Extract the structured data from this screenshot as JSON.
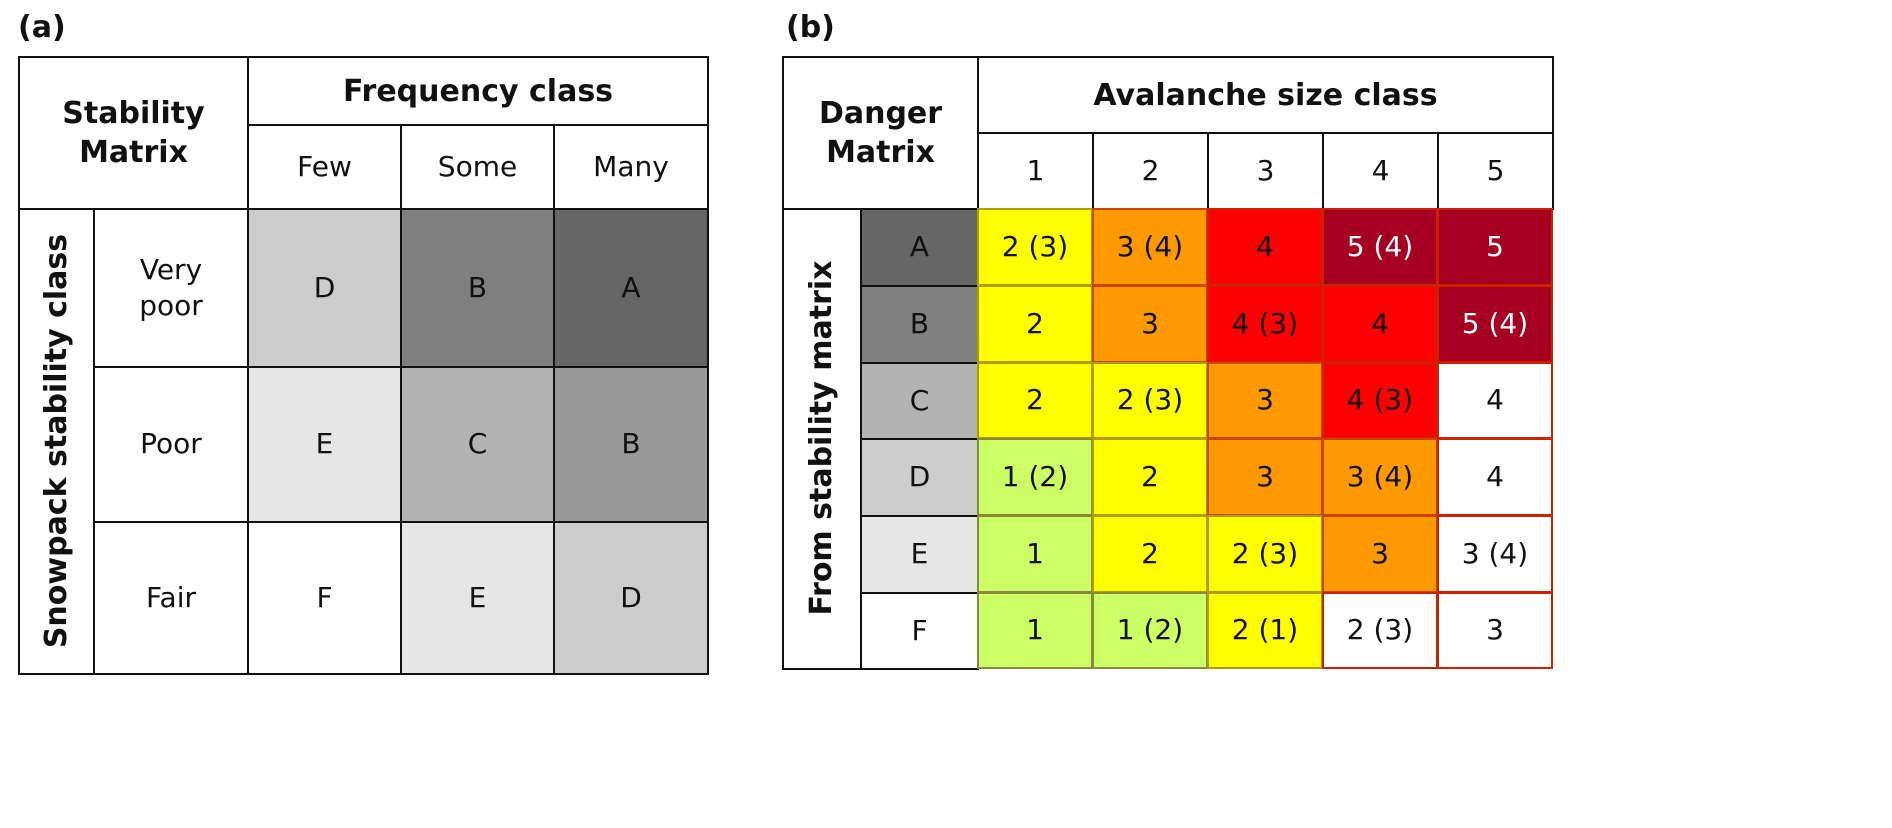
{
  "panel_a": {
    "label": "(a)",
    "corner": "Stability Matrix",
    "col_group": "Frequency class",
    "columns": [
      "Few",
      "Some",
      "Many"
    ],
    "row_group": "Snowpack stability class",
    "rows": [
      {
        "label": "Very poor",
        "cells": [
          {
            "v": "D",
            "c": "#cccccc"
          },
          {
            "v": "B",
            "c": "#808080"
          },
          {
            "v": "A",
            "c": "#666666"
          }
        ]
      },
      {
        "label": "Poor",
        "cells": [
          {
            "v": "E",
            "c": "#e6e6e6"
          },
          {
            "v": "C",
            "c": "#b3b3b3"
          },
          {
            "v": "B",
            "c": "#999999"
          }
        ]
      },
      {
        "label": "Fair",
        "cells": [
          {
            "v": "F",
            "c": "#ffffff"
          },
          {
            "v": "E",
            "c": "#e6e6e6"
          },
          {
            "v": "D",
            "c": "#cccccc"
          }
        ]
      }
    ]
  },
  "panel_b": {
    "label": "(b)",
    "corner": "Danger Matrix",
    "col_group": "Avalanche size class",
    "columns": [
      "1",
      "2",
      "3",
      "4",
      "5"
    ],
    "row_group": "From stability matrix",
    "rows": [
      {
        "label": "A",
        "c": "#666666",
        "cells": [
          {
            "v": "2 (3)",
            "t": "Y"
          },
          {
            "v": "3 (4)",
            "t": "O"
          },
          {
            "v": "4",
            "t": "R"
          },
          {
            "v": "5 (4)",
            "t": "D"
          },
          {
            "v": "5",
            "t": "D"
          }
        ]
      },
      {
        "label": "B",
        "c": "#808080",
        "cells": [
          {
            "v": "2",
            "t": "Y"
          },
          {
            "v": "3",
            "t": "O"
          },
          {
            "v": "4 (3)",
            "t": "R"
          },
          {
            "v": "4",
            "t": "R"
          },
          {
            "v": "5 (4)",
            "t": "D"
          }
        ]
      },
      {
        "label": "C",
        "c": "#b3b3b3",
        "cells": [
          {
            "v": "2",
            "t": "Y"
          },
          {
            "v": "2 (3)",
            "t": "Y"
          },
          {
            "v": "3",
            "t": "O"
          },
          {
            "v": "4 (3)",
            "t": "R"
          },
          {
            "v": "4",
            "t": "W"
          }
        ]
      },
      {
        "label": "D",
        "c": "#cccccc",
        "cells": [
          {
            "v": "1 (2)",
            "t": "G"
          },
          {
            "v": "2",
            "t": "Y"
          },
          {
            "v": "3",
            "t": "O"
          },
          {
            "v": "3 (4)",
            "t": "O"
          },
          {
            "v": "4",
            "t": "W"
          }
        ]
      },
      {
        "label": "E",
        "c": "#e6e6e6",
        "cells": [
          {
            "v": "1",
            "t": "G"
          },
          {
            "v": "2",
            "t": "Y"
          },
          {
            "v": "2 (3)",
            "t": "Y"
          },
          {
            "v": "3",
            "t": "O"
          },
          {
            "v": "3 (4)",
            "t": "W"
          }
        ]
      },
      {
        "label": "F",
        "c": "#ffffff",
        "cells": [
          {
            "v": "1",
            "t": "G"
          },
          {
            "v": "1 (2)",
            "t": "G"
          },
          {
            "v": "2 (1)",
            "t": "Y"
          },
          {
            "v": "2 (3)",
            "t": "W"
          },
          {
            "v": "3",
            "t": "W"
          }
        ]
      }
    ],
    "level_colors": {
      "G": {
        "bg": "#ccff66",
        "border": "#8a8a3a",
        "fg": "#111111"
      },
      "Y": {
        "bg": "#ffff00",
        "border": "#b39a00",
        "fg": "#111111"
      },
      "O": {
        "bg": "#ff9900",
        "border": "#cc4400",
        "fg": "#111111"
      },
      "R": {
        "bg": "#ff0000",
        "border": "#cc2200",
        "fg": "#111111"
      },
      "D": {
        "bg": "#a50021",
        "border": "#cc2200",
        "fg": "#ffffff"
      },
      "W": {
        "bg": "#ffffff",
        "border": "#cc2200",
        "fg": "#111111"
      }
    }
  }
}
